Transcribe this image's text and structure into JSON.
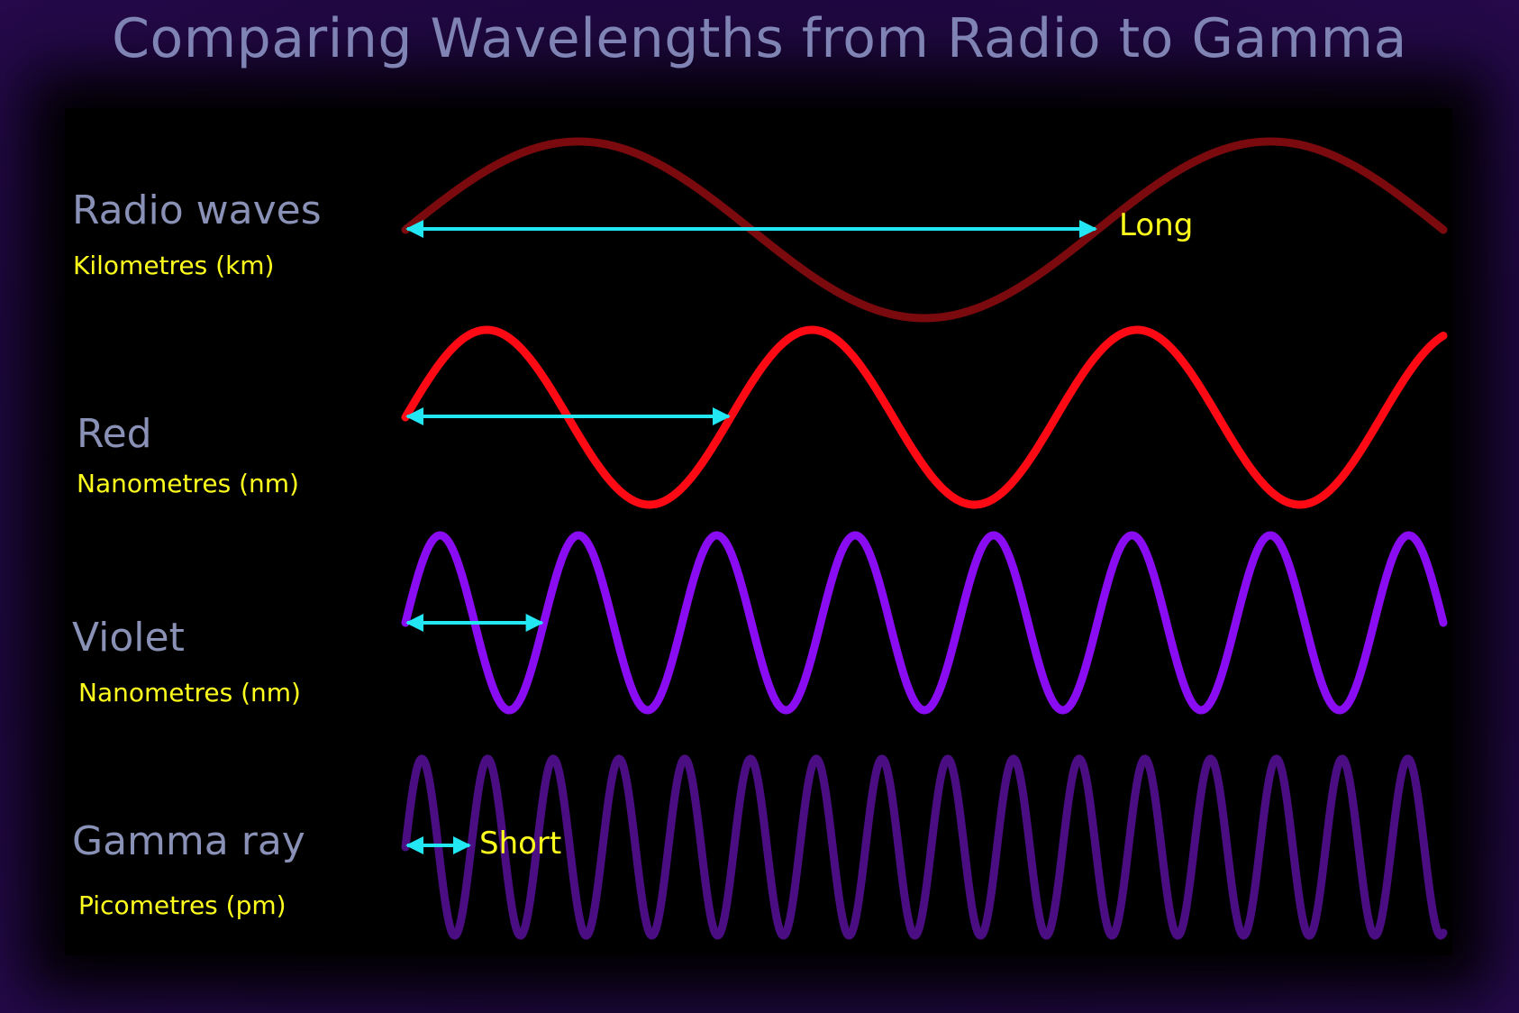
{
  "title": "Comparing Wavelengths from Radio to Gamma",
  "colors": {
    "background": "#1f0840",
    "panel": "#000000",
    "title_text": "#7f84b4",
    "label_text": "#8a91b6",
    "unit_text": "#ffff1e",
    "arrow": "#22e6f2"
  },
  "waves": [
    {
      "name": "Radio waves",
      "unit": "Kilometres (km)",
      "color": "#7a0a0e",
      "relative_wavelength": 1.0,
      "marker": "Long"
    },
    {
      "name": "Red",
      "unit": "Nanometres (nm)",
      "color": "#ff0a14",
      "relative_wavelength": 0.47,
      "marker": ""
    },
    {
      "name": "Violet",
      "unit": "Nanometres (nm)",
      "color": "#8a0cf2",
      "relative_wavelength": 0.2,
      "marker": ""
    },
    {
      "name": "Gamma ray",
      "unit": "Picometres (pm)",
      "color": "#4a0e82",
      "relative_wavelength": 0.095,
      "marker": "Short"
    }
  ]
}
